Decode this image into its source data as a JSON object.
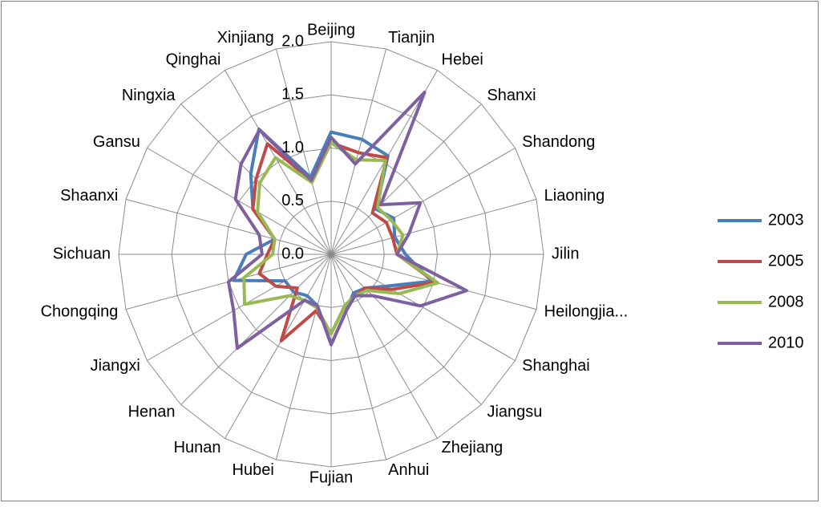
{
  "chart_data": {
    "type": "radar",
    "categories": [
      "Beijing",
      "Tianjin",
      "Hebei",
      "Shanxi",
      "Shandong",
      "Liaoning",
      "Jilin",
      "Heilongjia...",
      "Shanghai",
      "Jiangsu",
      "Zhejiang",
      "Anhui",
      "Fujian",
      "Hubei",
      "Hunan",
      "Henan",
      "Jiangxi",
      "Chongqing",
      "Sichuan",
      "Shaanxi",
      "Gansu",
      "Ningxia",
      "Qinghai",
      "Xinjiang"
    ],
    "series": [
      {
        "name": "2003",
        "color": "#4a7ebb",
        "values": [
          1.15,
          1.12,
          1.07,
          0.6,
          0.68,
          0.62,
          0.7,
          0.98,
          0.6,
          0.45,
          0.42,
          0.55,
          0.85,
          0.5,
          0.45,
          0.5,
          0.5,
          0.95,
          0.8,
          0.55,
          0.85,
          1.07,
          1.36,
          0.75
        ]
      },
      {
        "name": "2005",
        "color": "#be4b48",
        "values": [
          1.05,
          0.99,
          1.05,
          0.55,
          0.6,
          0.6,
          0.62,
          1.02,
          0.66,
          0.45,
          0.45,
          0.5,
          0.75,
          0.55,
          0.94,
          0.45,
          0.6,
          0.7,
          0.6,
          0.55,
          0.85,
          1.0,
          1.2,
          0.72
        ]
      },
      {
        "name": "2008",
        "color": "#98b954",
        "values": [
          1.05,
          0.92,
          1.02,
          0.62,
          0.65,
          0.7,
          0.62,
          1.04,
          0.74,
          0.48,
          0.45,
          0.5,
          0.75,
          0.52,
          0.5,
          0.55,
          0.94,
          0.85,
          0.55,
          0.55,
          0.8,
          0.95,
          1.05,
          0.7
        ]
      },
      {
        "name": "2010",
        "color": "#7d60a0",
        "values": [
          1.1,
          0.88,
          1.76,
          0.66,
          0.97,
          0.76,
          0.62,
          1.32,
          0.97,
          0.55,
          0.45,
          0.55,
          0.85,
          0.5,
          0.5,
          1.25,
          1.06,
          1.0,
          0.65,
          0.7,
          1.04,
          1.2,
          1.35,
          0.72
        ]
      }
    ],
    "ylim": [
      0,
      2
    ],
    "yticks": [
      {
        "value": 0,
        "label": "0.0"
      },
      {
        "value": 0.5,
        "label": "0.5"
      },
      {
        "value": 1,
        "label": "1.0"
      },
      {
        "value": 1.5,
        "label": "1.5"
      },
      {
        "value": 2,
        "label": "2.0"
      }
    ],
    "grid": true,
    "legend": "right"
  }
}
